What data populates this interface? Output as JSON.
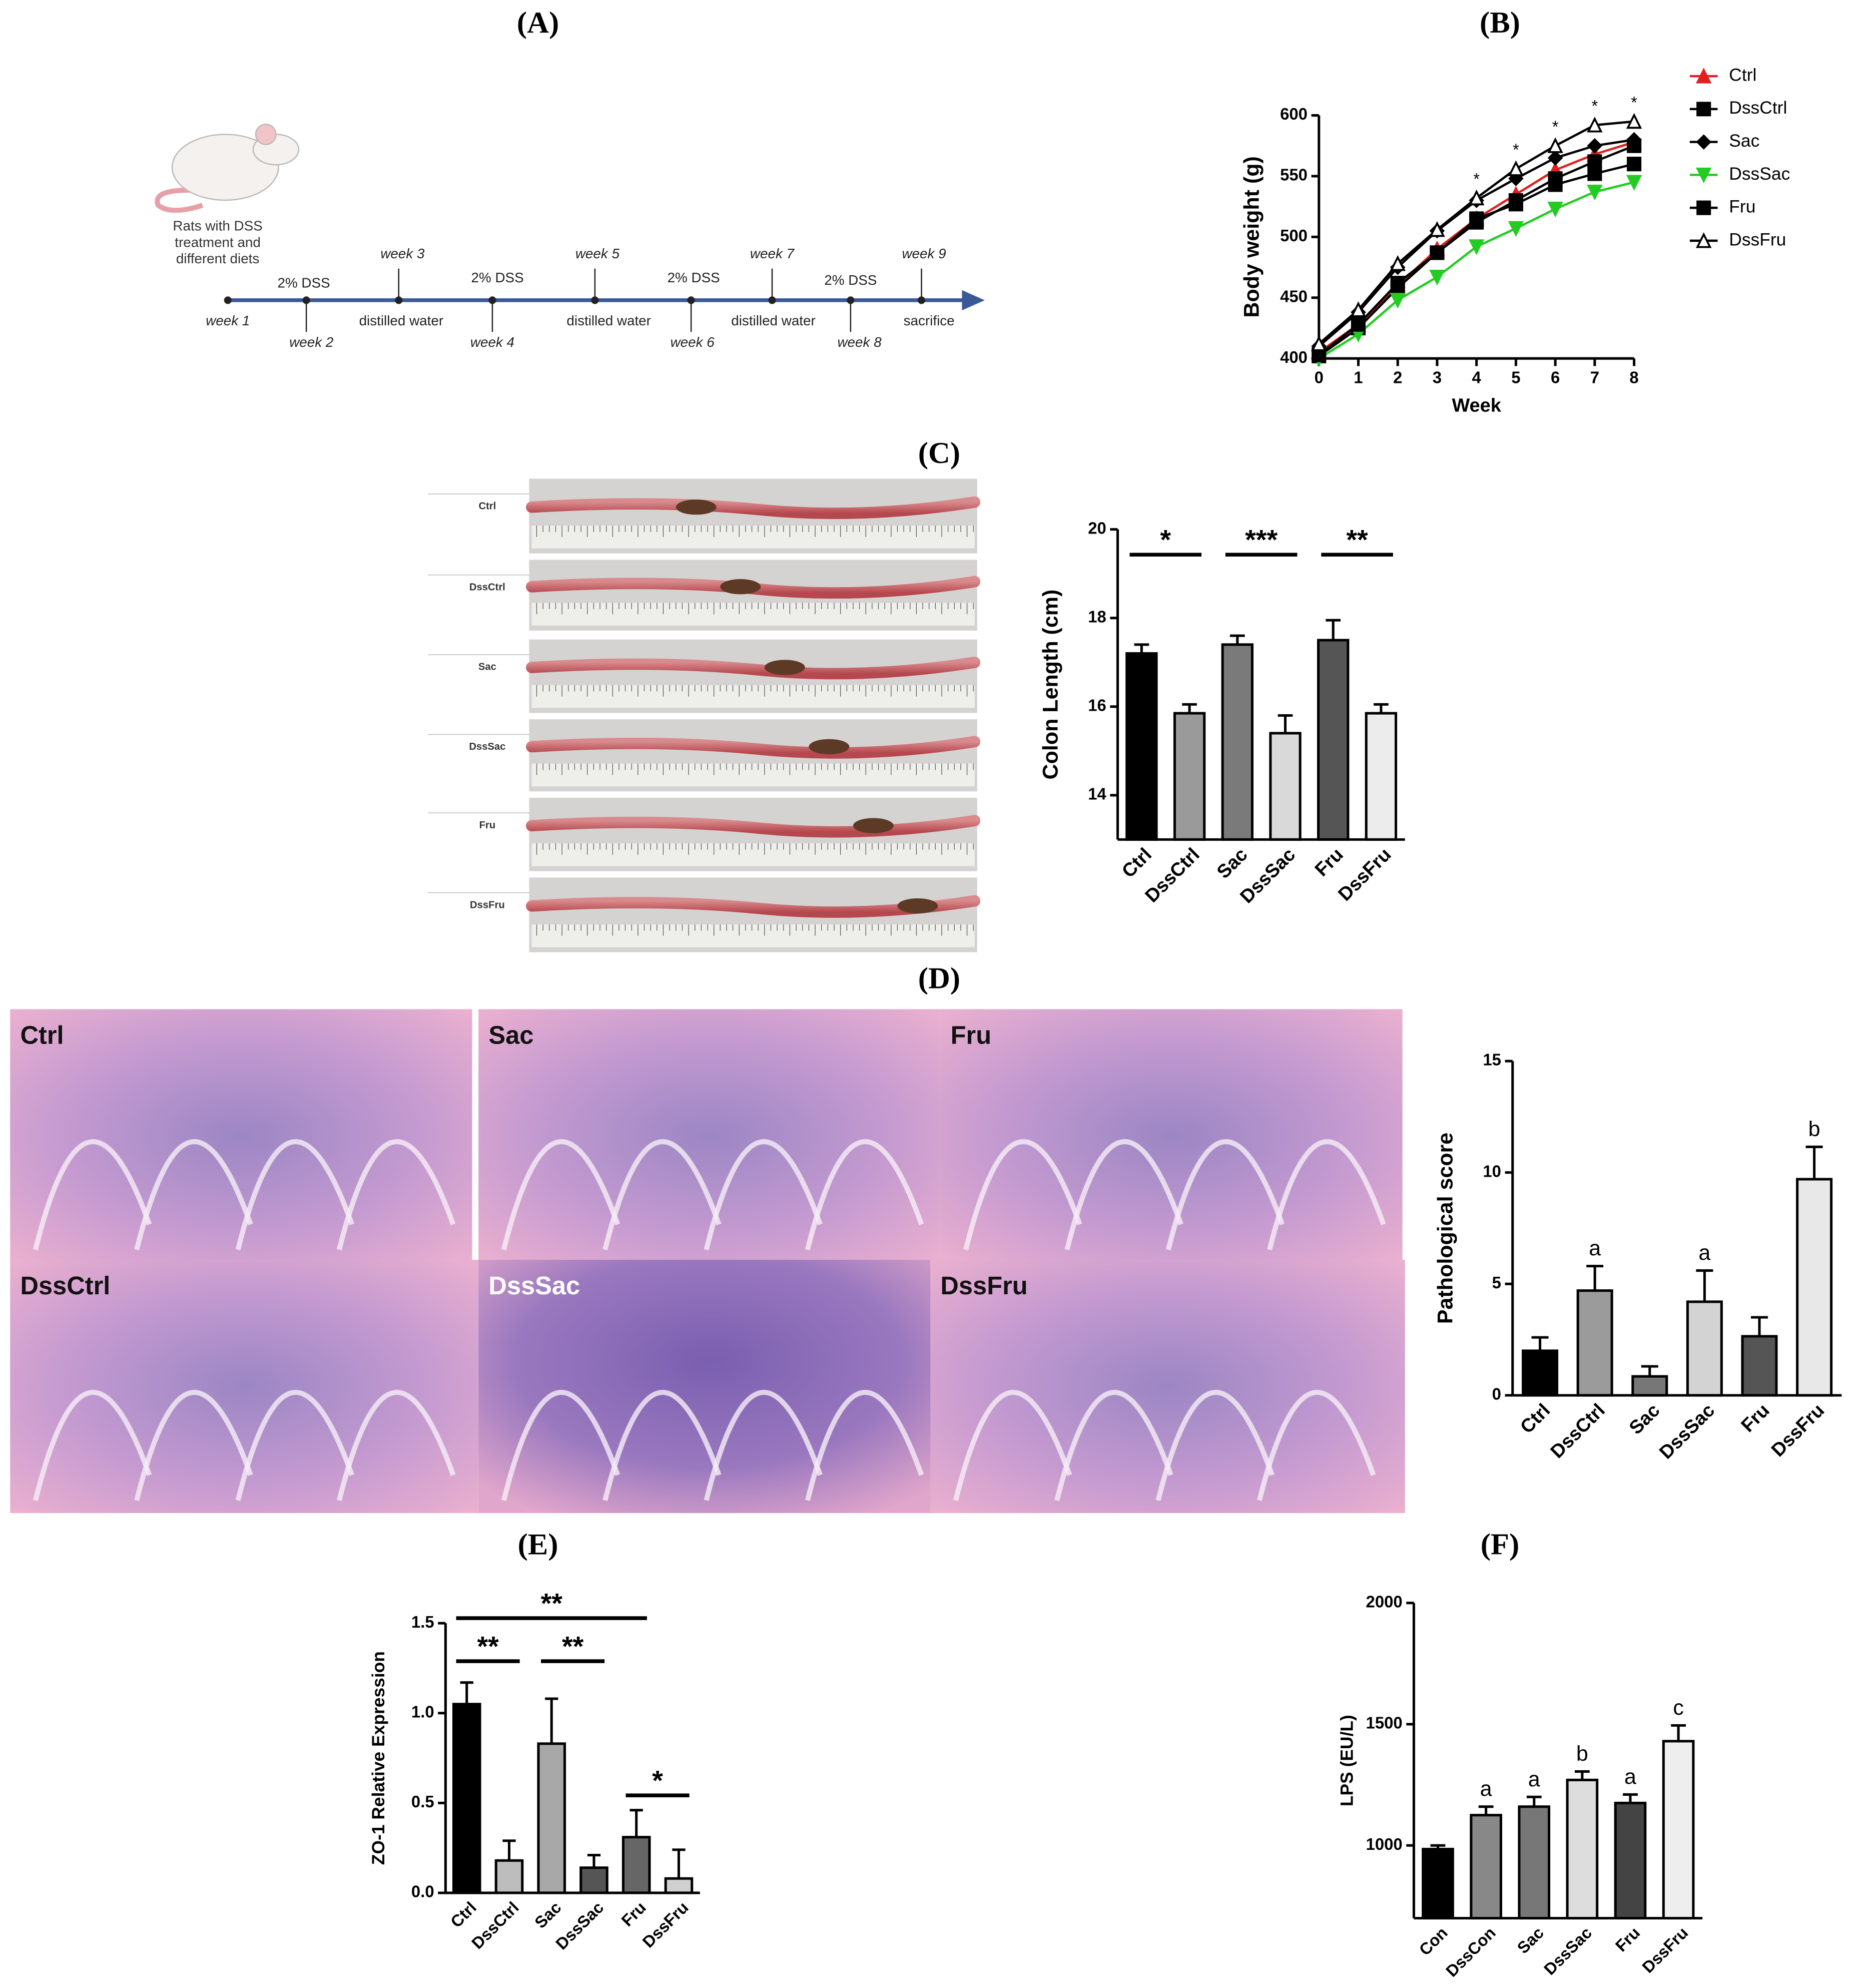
{
  "panel_labels": [
    "(A)",
    "(B)",
    "(C)",
    "(D)",
    "(E)",
    "(F)"
  ],
  "timeline": {
    "intro": [
      "Rats with DSS",
      "treatment and",
      "different diets"
    ],
    "above": [
      "2% DSS",
      "week 3",
      "2% DSS",
      "week 5",
      "2% DSS",
      "week 7",
      "2% DSS",
      "week 9"
    ],
    "below": [
      "week 1",
      "week 2",
      "distilled water",
      "week 4",
      "distilled water",
      "week 6",
      "distilled water",
      "week 8",
      "sacrifice"
    ]
  },
  "colon_photo_labels": [
    "Ctrl",
    "DssCtrl",
    "Sac",
    "DssSac",
    "Fru",
    "DssFru"
  ],
  "histology_labels": [
    "Ctrl",
    "Sac",
    "Fru",
    "DssCtrl",
    "DssSac",
    "DssFru"
  ],
  "chart_data": [
    {
      "type": "line",
      "x_label": "Week",
      "y_label": "Body weight (g)",
      "x": [
        0,
        1,
        2,
        3,
        4,
        5,
        6,
        7,
        8
      ],
      "xlim": [
        0,
        8
      ],
      "xticks": [
        0,
        1,
        2,
        3,
        4,
        5,
        6,
        7,
        8
      ],
      "ylim": [
        400,
        600
      ],
      "yticks": [
        400,
        450,
        500,
        550,
        600
      ],
      "series": [
        {
          "name": "Ctrl",
          "color": "#e02020",
          "marker": "triangle",
          "values": [
            405,
            428,
            460,
            490,
            515,
            535,
            555,
            568,
            578
          ]
        },
        {
          "name": "DssCtrl",
          "color": "#000000",
          "marker": "square",
          "values": [
            402,
            425,
            458,
            487,
            512,
            530,
            548,
            562,
            575
          ]
        },
        {
          "name": "Sac",
          "color": "#000000",
          "marker": "diamond",
          "values": [
            410,
            438,
            475,
            505,
            530,
            548,
            565,
            575,
            580
          ]
        },
        {
          "name": "DssSac",
          "color": "#22cc22",
          "marker": "triangle-down",
          "values": [
            400,
            420,
            448,
            467,
            492,
            507,
            523,
            537,
            545
          ]
        },
        {
          "name": "Fru",
          "color": "#000000",
          "marker": "square",
          "values": [
            403,
            428,
            462,
            487,
            515,
            527,
            543,
            552,
            560
          ]
        },
        {
          "name": "DssFru",
          "color": "#000000",
          "marker": "open-triangle",
          "values": [
            412,
            440,
            478,
            506,
            532,
            556,
            575,
            592,
            595
          ]
        }
      ],
      "annotations": [
        {
          "x": 4,
          "text": "*"
        },
        {
          "x": 5,
          "text": "*"
        },
        {
          "x": 6,
          "text": "*"
        },
        {
          "x": 7,
          "text": "*"
        },
        {
          "x": 8,
          "text": "*"
        }
      ]
    },
    {
      "type": "bar",
      "y_label": "Colon Length (cm)",
      "categories": [
        "Ctrl",
        "DssCtrl",
        "Sac",
        "DssSac",
        "Fru",
        "DssFru"
      ],
      "values": [
        17.2,
        15.85,
        17.4,
        15.4,
        17.5,
        15.85
      ],
      "errors": [
        0.2,
        0.2,
        0.2,
        0.4,
        0.45,
        0.2
      ],
      "colors": [
        "#000000",
        "#9a9a9a",
        "#7a7a7a",
        "#d9d9d9",
        "#555555",
        "#ececec"
      ],
      "ylim": [
        13,
        20
      ],
      "yticks": [
        14,
        16,
        18,
        20
      ],
      "brackets": [
        {
          "from": 0,
          "to": 1,
          "label": "*"
        },
        {
          "from": 2,
          "to": 3,
          "label": "***"
        },
        {
          "from": 4,
          "to": 5,
          "label": "**"
        }
      ]
    },
    {
      "type": "bar",
      "y_label": "Pathological score",
      "categories": [
        "Ctrl",
        "DssCtrl",
        "Sac",
        "DssSac",
        "Fru",
        "DssFru"
      ],
      "values": [
        2.0,
        4.7,
        0.85,
        4.2,
        2.65,
        9.7
      ],
      "errors": [
        0.6,
        1.1,
        0.45,
        1.4,
        0.85,
        1.45
      ],
      "letters": [
        null,
        "a",
        null,
        "a",
        null,
        "b"
      ],
      "colors": [
        "#000000",
        "#9b9b9b",
        "#777777",
        "#d3d3d3",
        "#555555",
        "#e8e8e8"
      ],
      "ylim": [
        0,
        15
      ],
      "yticks": [
        0,
        5,
        10,
        15
      ]
    },
    {
      "type": "bar",
      "y_label": "ZO-1 Relative Expression",
      "categories": [
        "Ctrl",
        "DssCtrl",
        "Sac",
        "DssSac",
        "Fru",
        "DssFru"
      ],
      "values": [
        1.05,
        0.18,
        0.83,
        0.14,
        0.31,
        0.08
      ],
      "errors": [
        0.12,
        0.11,
        0.25,
        0.07,
        0.15,
        0.16
      ],
      "colors": [
        "#000000",
        "#bdbdbd",
        "#a8a8a8",
        "#555555",
        "#666666",
        "#d0d0d0"
      ],
      "ylim": [
        0,
        1.5
      ],
      "yticks": [
        {
          "value": 0,
          "label": "0.0"
        },
        0.5,
        {
          "value": 1,
          "label": "1.0"
        },
        1.5
      ],
      "brackets": [
        {
          "from": 0,
          "to": 1,
          "label": "**"
        },
        {
          "from": 2,
          "to": 3,
          "label": "**"
        },
        {
          "from": 0,
          "to": 4,
          "label": "**"
        },
        {
          "from": 4,
          "to": 5,
          "label": "*"
        }
      ]
    },
    {
      "type": "bar",
      "y_label": "LPS (EU/L)",
      "categories": [
        "Con",
        "DssCon",
        "Sac",
        "DssSac",
        "Fru",
        "DssFru"
      ],
      "values": [
        985,
        1125,
        1160,
        1270,
        1175,
        1430
      ],
      "errors": [
        15,
        35,
        40,
        35,
        35,
        65
      ],
      "letters": [
        null,
        "a",
        "a",
        "b",
        "a",
        "c"
      ],
      "colors": [
        "#000000",
        "#888888",
        "#777777",
        "#dddddd",
        "#444444",
        "#eeeeee"
      ],
      "ylim": [
        700,
        2000
      ],
      "yticks": [
        1000,
        1500,
        2000
      ]
    }
  ]
}
